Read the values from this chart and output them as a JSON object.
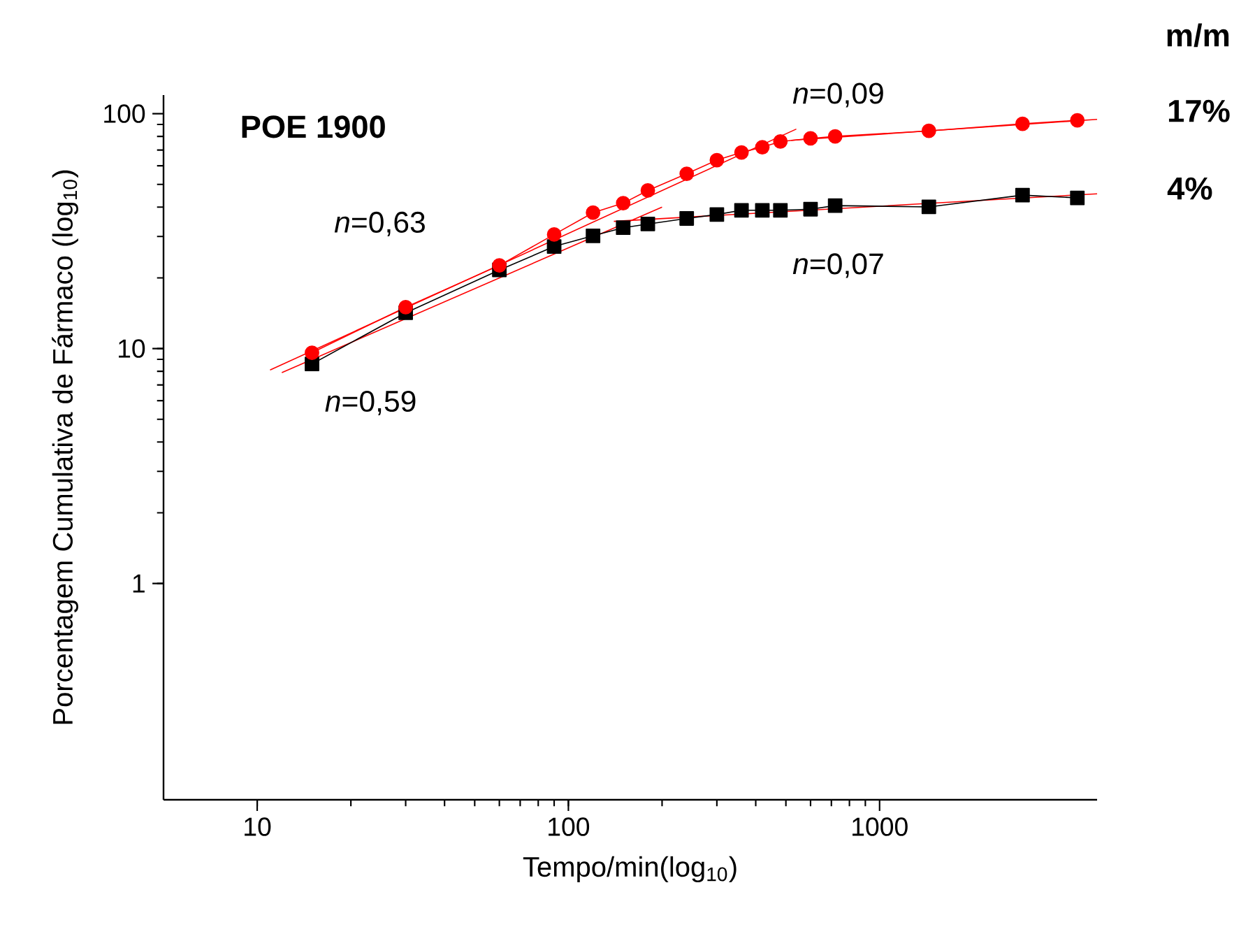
{
  "chart_data": {
    "type": "line",
    "title": "POE 1900",
    "xlabel": "Tempo/min(log$_{10}$)",
    "ylabel": "Porcentagem Cumulativa de Fármaco (log$_{10}$)",
    "legend_title": "m/m",
    "log": "xy",
    "grid": false,
    "legend": false,
    "xlim": [
      5,
      5000
    ],
    "ylim": [
      0.12,
      120
    ],
    "xticks": [
      10,
      100,
      1000
    ],
    "yticks": [
      1,
      10,
      100
    ],
    "series": [
      {
        "name": "17%",
        "color": "#ff0000",
        "marker": "circle",
        "x": [
          15,
          30,
          60,
          90,
          120,
          150,
          180,
          240,
          300,
          360,
          420,
          480,
          600,
          720,
          1440,
          2880,
          4320
        ],
        "values": [
          9.6,
          15,
          22.6,
          30.6,
          37.9,
          41.6,
          47.1,
          55.5,
          63.4,
          68.4,
          72,
          76.1,
          78.5,
          80,
          84.5,
          90.5,
          93.7
        ]
      },
      {
        "name": "4%",
        "color": "#000000",
        "marker": "square",
        "x": [
          15,
          30,
          60,
          90,
          120,
          150,
          180,
          240,
          300,
          360,
          420,
          480,
          600,
          720,
          1440,
          2880,
          4320
        ],
        "values": [
          8.6,
          14.2,
          21.6,
          27.2,
          30.2,
          32.7,
          33.9,
          35.8,
          37.2,
          38.8,
          38.8,
          38.8,
          39.2,
          40.6,
          40.1,
          45,
          43.8
        ]
      },
      {
        "color": "#ff0000",
        "marker": "none",
        "x": [
          11,
          540
        ],
        "values": [
          8.1,
          86
        ]
      },
      {
        "color": "#ff0000",
        "marker": "none",
        "x": [
          12,
          200
        ],
        "values": [
          7.9,
          40
        ]
      },
      {
        "color": "#ff0000",
        "marker": "none",
        "x": [
          520,
          5000
        ],
        "values": [
          77,
          94.6
        ]
      },
      {
        "color": "#ff0000",
        "marker": "none",
        "x": [
          140,
          5000
        ],
        "values": [
          34.8,
          45.6
        ]
      }
    ],
    "annotations": [
      "*n*=0,63",
      "*n*=0,59",
      "*n*=0,09",
      "*n*=0,07"
    ]
  }
}
